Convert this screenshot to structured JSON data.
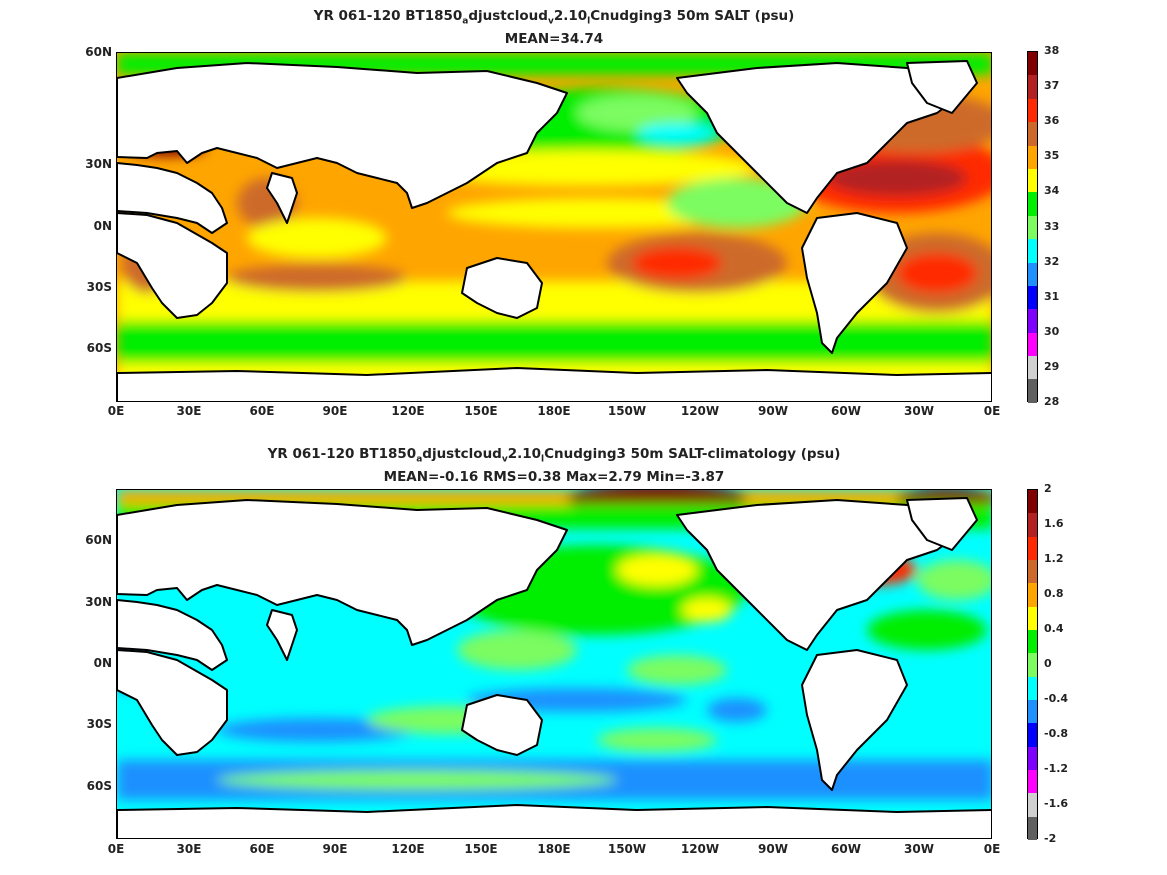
{
  "panels": [
    {
      "title_parts": [
        "YR 061-120 BT1850",
        "a",
        "djustcloud",
        "v",
        "2.10",
        "l",
        "Cnudging3 50m SALT (psu)"
      ],
      "stats": "MEAN=34.74",
      "colorbar_labels": [
        "38",
        "37",
        "36",
        "35",
        "34",
        "33",
        "32",
        "31",
        "30",
        "29",
        "28"
      ],
      "colorbar_colors": [
        "#800000",
        "#b22222",
        "#ff2a00",
        "#cd6a2b",
        "#ffa500",
        "#ffff00",
        "#00ee00",
        "#7cfc60",
        "#00ffff",
        "#1e90ff",
        "#0000ff",
        "#8000ff",
        "#ff00ff",
        "#d0d0d0",
        "#606060"
      ]
    },
    {
      "title_parts": [
        "YR 061-120 BT1850",
        "a",
        "djustcloud",
        "v",
        "2.10",
        "l",
        "Cnudging3 50m SALT-climatology (psu)"
      ],
      "stats": "MEAN=-0.16   RMS=0.38   Max=2.79   Min=-3.87",
      "colorbar_labels": [
        "2",
        "1.6",
        "1.2",
        "0.8",
        "0.4",
        "0",
        "-0.4",
        "-0.8",
        "-1.2",
        "-1.6",
        "-2"
      ],
      "colorbar_colors": [
        "#800000",
        "#b22222",
        "#ff2a00",
        "#cd6a2b",
        "#ffa500",
        "#ffff00",
        "#00ee00",
        "#7cfc60",
        "#00ffff",
        "#1e90ff",
        "#0000ff",
        "#8000ff",
        "#ff00ff",
        "#d0d0d0",
        "#606060"
      ]
    }
  ],
  "lat_labels": [
    "60N",
    "30N",
    "0N",
    "30S",
    "60S"
  ],
  "lon_labels": [
    "0E",
    "30E",
    "60E",
    "90E",
    "120E",
    "150E",
    "180E",
    "150W",
    "120W",
    "90W",
    "60W",
    "30W",
    "0E"
  ]
}
